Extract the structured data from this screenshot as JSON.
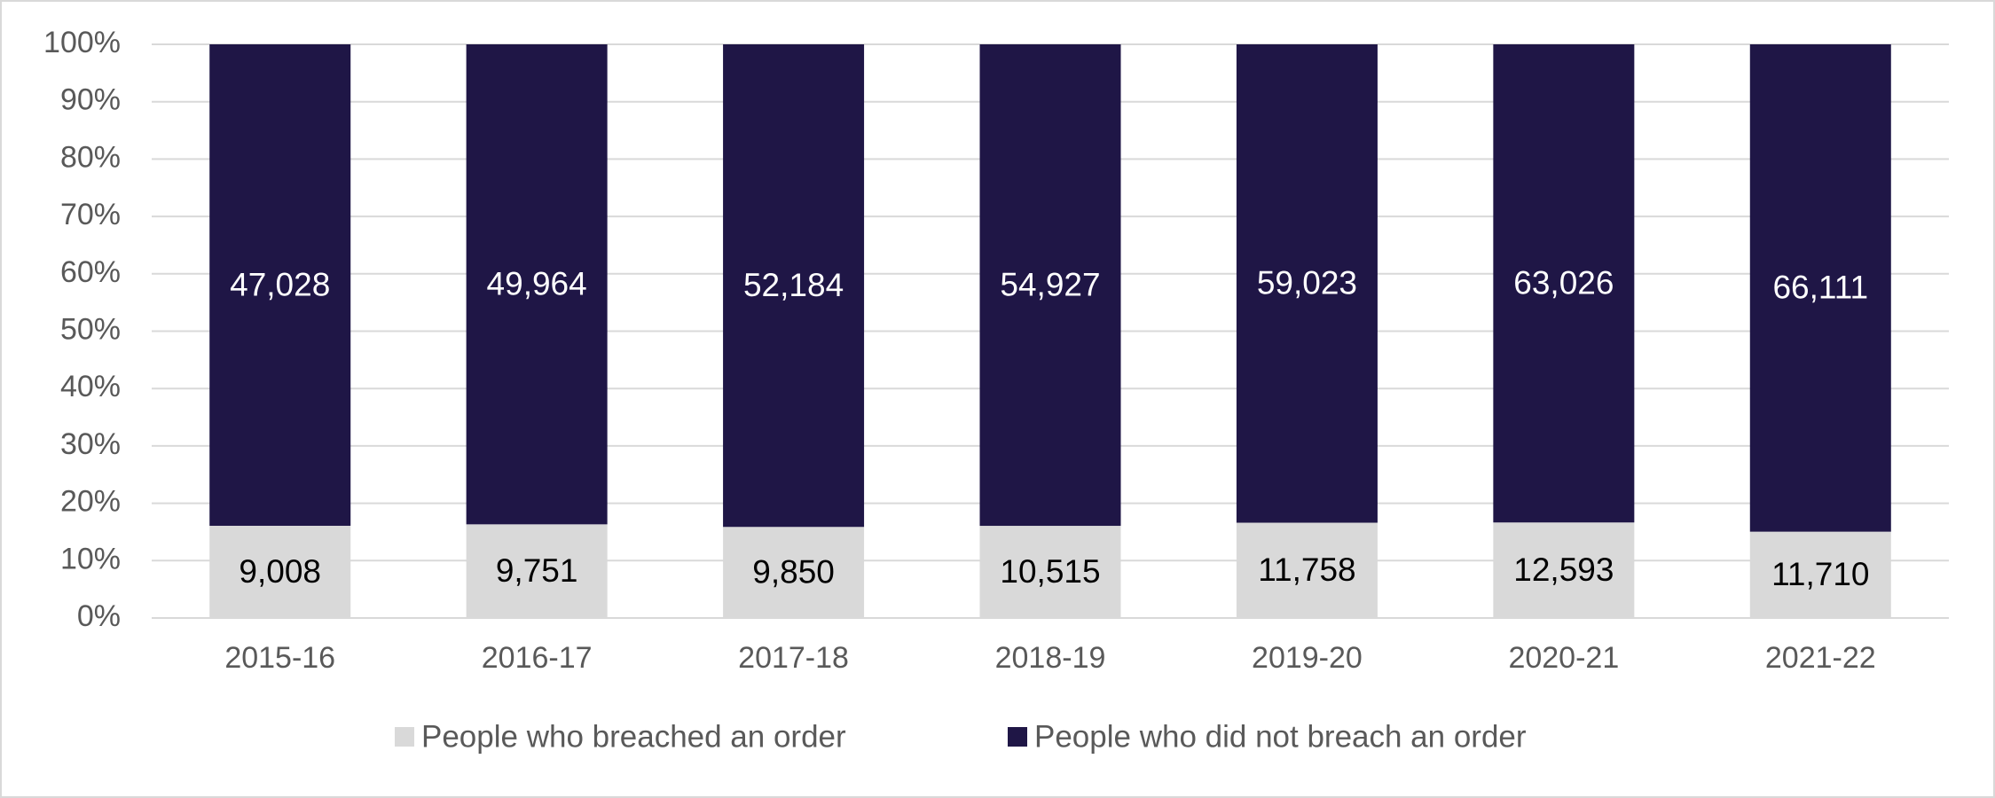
{
  "chart_data": {
    "type": "stacked_percent_bar",
    "categories": [
      "2015-16",
      "2016-17",
      "2017-18",
      "2018-19",
      "2019-20",
      "2020-21",
      "2021-22"
    ],
    "series": [
      {
        "name": "People who breached an order",
        "color": "#d9d9d9",
        "label_color": "#000000",
        "values": [
          9008,
          9751,
          9850,
          10515,
          11758,
          12593,
          11710
        ],
        "value_labels": [
          "9,008",
          "9,751",
          "9,850",
          "10,515",
          "11,758",
          "12,593",
          "11,710"
        ]
      },
      {
        "name": "People who did not breach an order",
        "color": "#1f1646",
        "label_color": "#ffffff",
        "values": [
          47028,
          49964,
          52184,
          54927,
          59023,
          63026,
          66111
        ],
        "value_labels": [
          "47,028",
          "49,964",
          "52,184",
          "54,927",
          "59,023",
          "63,026",
          "66,111"
        ]
      }
    ],
    "ylim": [
      0,
      100
    ],
    "yticks": [
      {
        "value": 0,
        "label": "0%"
      },
      {
        "value": 10,
        "label": "10%"
      },
      {
        "value": 20,
        "label": "20%"
      },
      {
        "value": 30,
        "label": "30%"
      },
      {
        "value": 40,
        "label": "40%"
      },
      {
        "value": 50,
        "label": "50%"
      },
      {
        "value": 60,
        "label": "60%"
      },
      {
        "value": 70,
        "label": "70%"
      },
      {
        "value": 80,
        "label": "80%"
      },
      {
        "value": 90,
        "label": "90%"
      },
      {
        "value": 100,
        "label": "100%"
      }
    ],
    "grid": true,
    "legend": "bottom"
  }
}
